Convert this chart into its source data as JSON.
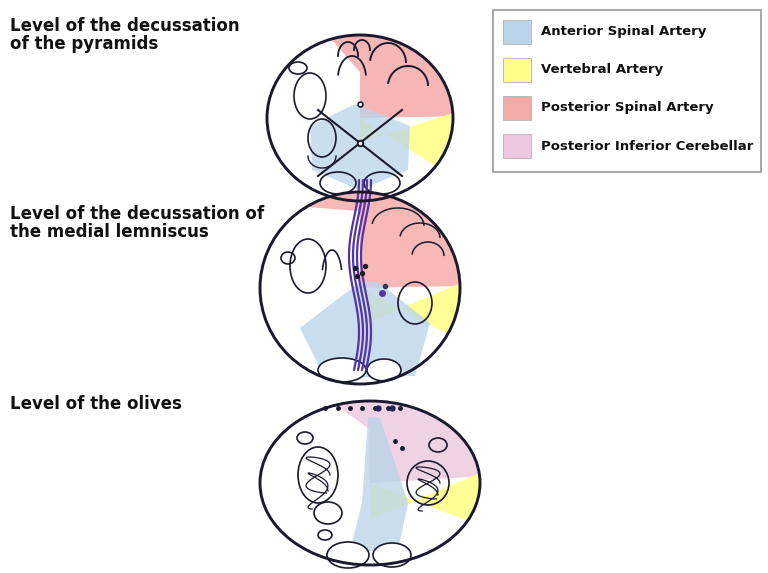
{
  "labels": {
    "s1_l1": "Level of the decussation",
    "s1_l2": "of the pyramids",
    "s2_l1": "Level of the decussation of",
    "s2_l2": "the medial lemniscus",
    "s3": "Level of the olives"
  },
  "legend_items": [
    {
      "label": "Anterior Spinal Artery",
      "color": "#bad4eb"
    },
    {
      "label": "Vertebral Artery",
      "color": "#ffff88"
    },
    {
      "label": "Posterior Spinal Artery",
      "color": "#f5aaa8"
    },
    {
      "label": "Posterior Inferior Cerebellar",
      "color": "#edc8e0"
    }
  ],
  "colors": {
    "anterior_spinal": "#bad4eb",
    "vertebral": "#ffff88",
    "posterior_spinal": "#f5aaa8",
    "posterior_inferior": "#edc8e0",
    "purple": "#5533aa",
    "outline": "#1a1a2e",
    "background": "#ffffff"
  },
  "fig_width": 7.68,
  "fig_height": 5.73,
  "dpi": 100
}
